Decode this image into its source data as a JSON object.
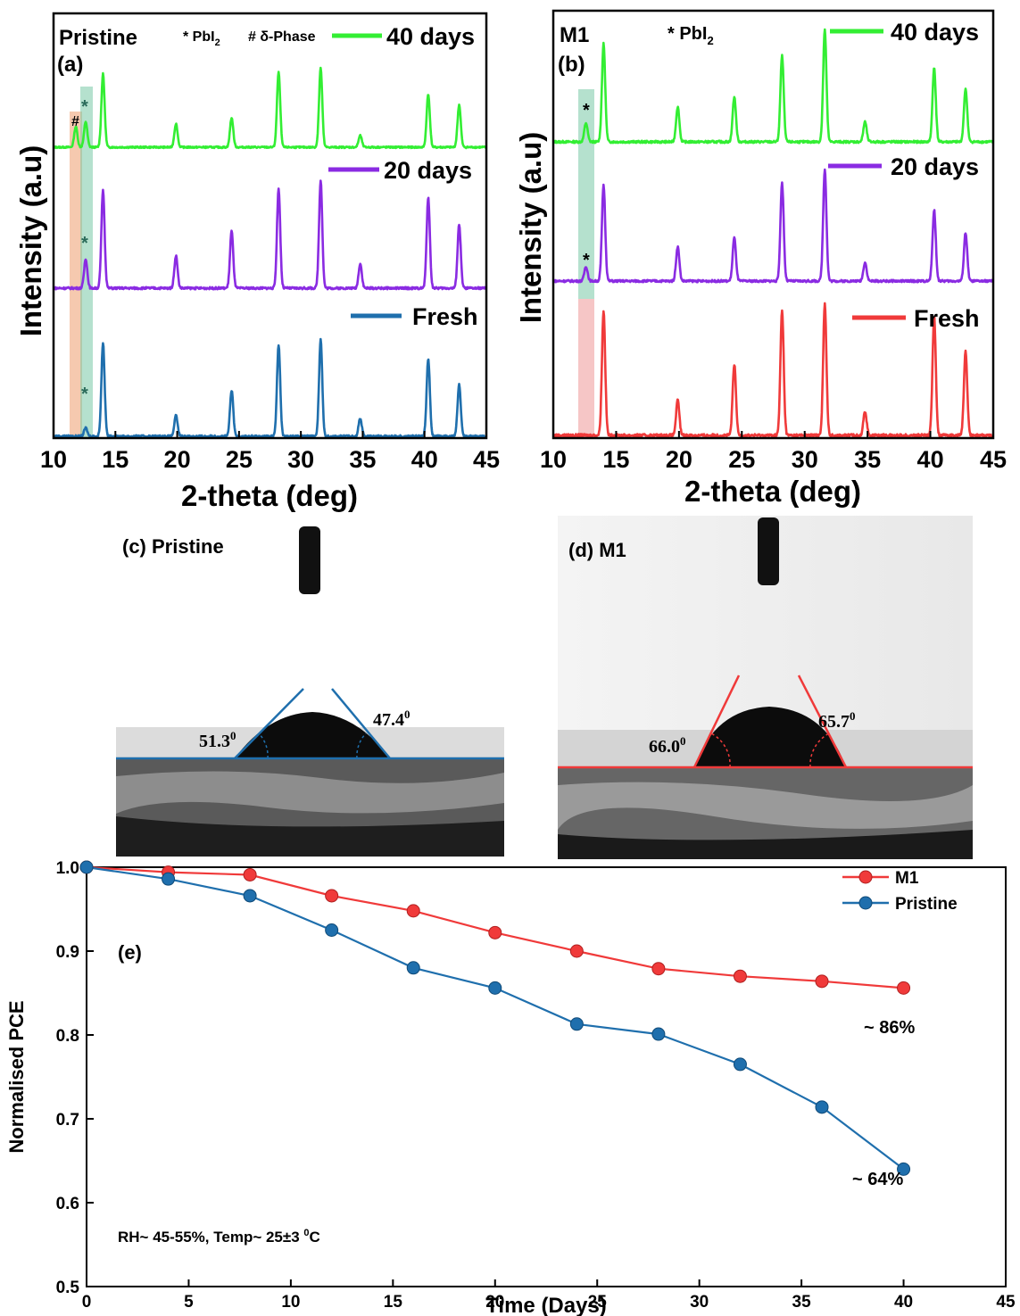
{
  "chart_data": [
    {
      "type": "line",
      "panel": "(a)",
      "sample_label": "Pristine",
      "phase_legend": {
        "pbi2": "* PbI",
        "pbi2_sub": "2",
        "delta": "# δ-Phase"
      },
      "xlabel": "2-theta (deg)",
      "ylabel": "Intensity (a.u)",
      "xlim": [
        10,
        45
      ],
      "xticks": [
        10,
        15,
        20,
        25,
        30,
        35,
        40,
        45
      ],
      "peaks_2theta": [
        11.8,
        12.6,
        14.0,
        19.9,
        24.4,
        28.2,
        31.6,
        34.8,
        40.3,
        42.8
      ],
      "series": [
        {
          "name": "40 days",
          "color": "#33ee33",
          "relative_intensity": [
            0.28,
            0.35,
            1.0,
            0.32,
            0.4,
            1.02,
            1.08,
            0.16,
            0.72,
            0.58
          ]
        },
        {
          "name": "20 days",
          "color": "#8a2be2",
          "relative_intensity": [
            0.0,
            0.3,
            1.0,
            0.33,
            0.58,
            1.01,
            1.1,
            0.25,
            0.92,
            0.65
          ]
        },
        {
          "name": "Fresh",
          "color": "#1f6fad",
          "relative_intensity": [
            0.0,
            0.09,
            1.0,
            0.22,
            0.49,
            0.97,
            1.03,
            0.19,
            0.83,
            0.55
          ]
        }
      ],
      "annotations": [
        "#",
        "*",
        "*",
        "*"
      ]
    },
    {
      "type": "line",
      "panel": "(b)",
      "sample_label": "M1",
      "phase_legend": {
        "pbi2": "* PbI",
        "pbi2_sub": "2"
      },
      "xlabel": "2-theta (deg)",
      "ylabel": "Intensity (a.u)",
      "xlim": [
        10,
        45
      ],
      "xticks": [
        10,
        15,
        20,
        25,
        30,
        35,
        40,
        45
      ],
      "peaks_2theta": [
        12.6,
        14.0,
        19.9,
        24.4,
        28.2,
        31.6,
        34.8,
        40.3,
        42.8
      ],
      "series": [
        {
          "name": "40 days",
          "color": "#33ee33",
          "relative_intensity": [
            0.19,
            0.98,
            0.35,
            0.45,
            0.86,
            1.12,
            0.2,
            0.74,
            0.53
          ]
        },
        {
          "name": "20 days",
          "color": "#8a2be2",
          "relative_intensity": [
            0.15,
            0.98,
            0.35,
            0.44,
            1.0,
            1.14,
            0.19,
            0.72,
            0.49
          ]
        },
        {
          "name": "Fresh",
          "color": "#f03a3a",
          "relative_intensity": [
            0.0,
            1.0,
            0.28,
            0.57,
            1.0,
            1.05,
            0.19,
            0.96,
            0.67
          ]
        }
      ],
      "annotations": [
        "*",
        "*"
      ]
    },
    {
      "type": "line",
      "panel": "(e)",
      "xlabel": "Time (Days)",
      "ylabel": "Normalised PCE",
      "xlim": [
        0,
        45
      ],
      "ylim": [
        0.5,
        1.0
      ],
      "xticks": [
        0,
        5,
        10,
        15,
        20,
        25,
        30,
        35,
        40,
        45
      ],
      "yticks": [
        "0.5",
        "0.6",
        "0.7",
        "0.8",
        "0.9",
        "1.0"
      ],
      "legend_position": "top-right",
      "x": [
        0,
        4,
        8,
        12,
        16,
        20,
        24,
        28,
        32,
        36,
        40
      ],
      "series": [
        {
          "name": "M1",
          "color": "#f03a3a",
          "values": [
            1.0,
            0.994,
            0.991,
            0.966,
            0.948,
            0.922,
            0.9,
            0.879,
            0.87,
            0.864,
            0.856
          ]
        },
        {
          "name": "Pristine",
          "color": "#1f6fad",
          "values": [
            1.0,
            0.986,
            0.966,
            0.925,
            0.88,
            0.856,
            0.813,
            0.801,
            0.765,
            0.714,
            0.64
          ]
        }
      ],
      "annotations": [
        "~ 86%",
        "~ 64%"
      ],
      "condition_note": "RH~ 45-55%, Temp~ 25±3 ",
      "condition_sup": "0",
      "condition_unit": "C"
    }
  ],
  "contact_angle": {
    "pristine": {
      "panel_label": "(c) Pristine",
      "left_angle": "51.3",
      "right_angle": "47.4",
      "sup": "0"
    },
    "m1": {
      "panel_label": "(d) M1",
      "left_angle": "66.0",
      "right_angle": "65.7",
      "sup": "0"
    }
  },
  "panel_tags": {
    "a": "(a)",
    "b": "(b)",
    "e": "(e)"
  }
}
